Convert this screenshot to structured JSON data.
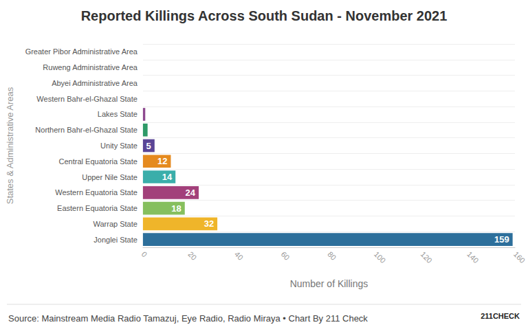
{
  "chart_data": {
    "type": "bar",
    "orientation": "horizontal",
    "title": "Reported Killings Across South Sudan - November 2021",
    "x_label": "Number of Killings",
    "y_label": "States & Administrative Areas",
    "categories": [
      "Greater Pibor Administrative Area",
      "Ruweng Administrative Area",
      "Abyei Administrative Area",
      "Western Bahr-el-Ghazal State",
      "Lakes State",
      "Northern Bahr-el-Ghazal State",
      "Unity State",
      "Central Equatoria State",
      "Upper Nile State",
      "Western Equatoria State",
      "Eastern Equatoria State",
      "Warrap State",
      "Jonglei State"
    ],
    "values": [
      0,
      0,
      0,
      0,
      1,
      2,
      5,
      12,
      14,
      24,
      18,
      32,
      159
    ],
    "value_labels": [
      null,
      null,
      null,
      null,
      null,
      null,
      "5",
      "12",
      "14",
      "24",
      "18",
      "32",
      "159"
    ],
    "colors": [
      "#7a7a7a",
      "#7a7a7a",
      "#7a7a7a",
      "#7a7a7a",
      "#8e4a8f",
      "#2f9a68",
      "#5a4596",
      "#e58a1f",
      "#3aaeaa",
      "#a2407a",
      "#86bf5e",
      "#efb52a",
      "#2d6f9b"
    ],
    "data_labels": true,
    "xlim": [
      0,
      160
    ],
    "xticks": [
      0,
      20,
      40,
      60,
      80,
      100,
      120,
      140,
      160
    ],
    "grid": true,
    "source": "Source: Mainstream Media Radio Tamazuj, Eye Radio, Radio Miraya • Chart By 211 Check",
    "logo": "211CHECK"
  }
}
